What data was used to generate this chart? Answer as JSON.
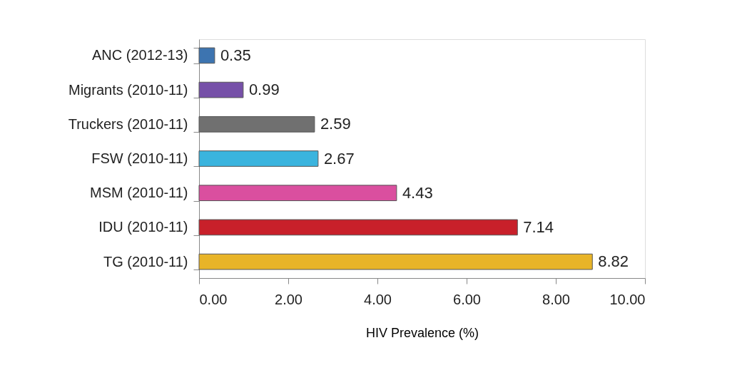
{
  "chart_data": {
    "type": "bar",
    "orientation": "horizontal",
    "xlabel": "HIV Prevalence (%)",
    "categories": [
      "ANC (2012-13)",
      "Migrants (2010-11)",
      "Truckers (2010-11)",
      "FSW (2010-11)",
      "MSM (2010-11)",
      "IDU (2010-11)",
      "TG (2010-11)"
    ],
    "values": [
      0.35,
      0.99,
      2.59,
      2.67,
      4.43,
      7.14,
      8.82
    ],
    "colors": [
      "#3d74b0",
      "#7650a8",
      "#707070",
      "#3ab4de",
      "#da4f9f",
      "#c8202a",
      "#e8b428"
    ],
    "xlim": [
      0,
      10
    ],
    "xticks": [
      {
        "value": 0,
        "label": "0.00"
      },
      {
        "value": 2,
        "label": "2.00"
      },
      {
        "value": 4,
        "label": "4.00"
      },
      {
        "value": 6,
        "label": "6.00"
      },
      {
        "value": 8,
        "label": "8.00"
      },
      {
        "value": 10,
        "label": "10.00"
      }
    ],
    "grid": false,
    "data_labels": true
  }
}
